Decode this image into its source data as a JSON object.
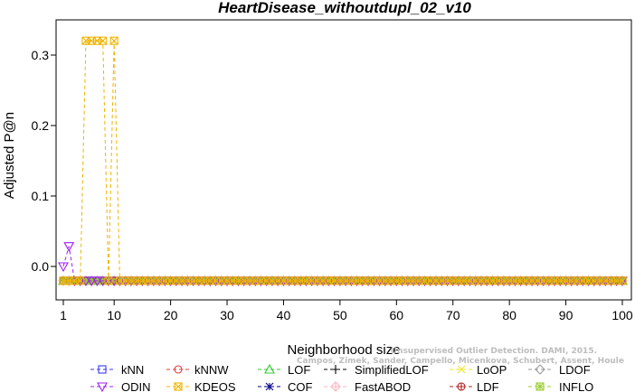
{
  "chart_data": {
    "type": "line",
    "title": "HeartDisease_withoutdupl_02_v10",
    "xlabel": "Neighborhood size",
    "ylabel": "Adjusted P@n",
    "xlim": [
      1,
      100
    ],
    "ylim": [
      -0.05,
      0.34
    ],
    "x_ticks": [
      1,
      10,
      20,
      30,
      40,
      50,
      60,
      70,
      80,
      90,
      100
    ],
    "y_ticks": [
      0.0,
      0.1,
      0.2,
      0.3
    ],
    "y_tick_labels": [
      "0.0",
      "0.1",
      "0.2",
      "0.3"
    ],
    "x": "1..100",
    "baseline_value": -0.0204,
    "series": [
      {
        "name": "kNN",
        "color": "#3a3aff",
        "marker": "square",
        "values": "constant -0.0204"
      },
      {
        "name": "kNNW",
        "color": "#e83a3a",
        "marker": "circle",
        "values": "constant -0.0204"
      },
      {
        "name": "LOF",
        "color": "#2ecc2e",
        "marker": "triangle",
        "values": "constant -0.0204"
      },
      {
        "name": "SimplifiedLOF",
        "color": "#000000",
        "marker": "plus",
        "values": "constant -0.0204"
      },
      {
        "name": "LoOP",
        "color": "#e6e62e",
        "marker": "x",
        "values": "constant -0.0204"
      },
      {
        "name": "LDOF",
        "color": "#9a9a9a",
        "marker": "diamond",
        "values": "constant -0.0204"
      },
      {
        "name": "ODIN",
        "color": "#a020f0",
        "marker": "triangle-down",
        "values": {
          "1": 0.0,
          "2": 0.0286,
          "3": -0.0204,
          "rest": -0.0204
        }
      },
      {
        "name": "KDEOS",
        "color": "#f0b400",
        "marker": "square-x",
        "values": {
          "1..3": -0.0204,
          "4": -0.0204,
          "5": 0.3203,
          "6": 0.3203,
          "7": 0.3203,
          "8": 0.3203,
          "9": -0.0204,
          "10": 0.3203,
          "11": -0.0204,
          "12..100": -0.0204
        }
      },
      {
        "name": "COF",
        "color": "#00008b",
        "marker": "asterisk",
        "values": "constant -0.0204"
      },
      {
        "name": "FastABOD",
        "color": "#ffb6c1",
        "marker": "diamond-plus",
        "values": "constant -0.0204"
      },
      {
        "name": "LDF",
        "color": "#b22222",
        "marker": "circle-plus",
        "values": "constant -0.0204"
      },
      {
        "name": "INFLO",
        "color": "#9acd32",
        "marker": "square-star",
        "values": "constant -0.0204"
      }
    ],
    "legend": {
      "placement": "bottom",
      "rows": 2
    },
    "watermark_lines": [
      "Unsupervised Outlier Detection. DAMI, 2015.",
      "Campos, Zimek, Sander, Campello, Micenkova, Schubert, Assent, Houle"
    ]
  }
}
